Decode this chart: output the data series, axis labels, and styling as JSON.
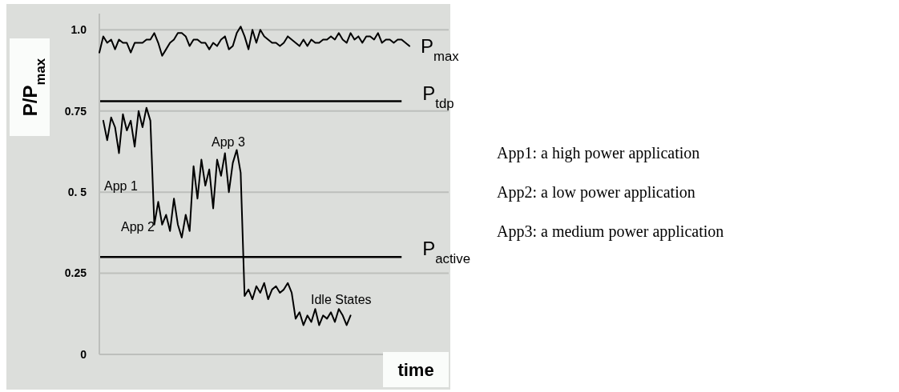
{
  "chart_data": {
    "type": "line",
    "xlabel": "time",
    "ylabel": "P/P$_{max}$",
    "categories": [
      null,
      null,
      null,
      null,
      null,
      null,
      null,
      null,
      null,
      null,
      null,
      null,
      null,
      null,
      null,
      null,
      null,
      null,
      null,
      null,
      null,
      null,
      null,
      null,
      null,
      null,
      null,
      null,
      null,
      null,
      null,
      null,
      null,
      null,
      null,
      null,
      null,
      null,
      null,
      null,
      null,
      null,
      null,
      null,
      null,
      null,
      null,
      null,
      null,
      null,
      null,
      null,
      null,
      null,
      null,
      null,
      null,
      null,
      null,
      null,
      null,
      null,
      null,
      null,
      null,
      null,
      null,
      null,
      null,
      null,
      null,
      null,
      null,
      null,
      null,
      null,
      null,
      null,
      null,
      null,
      null,
      null,
      null,
      null,
      null,
      null,
      null,
      null,
      null,
      null
    ],
    "series": [
      {
        "name": "P$_{max}$",
        "color": "#000000",
        "values": [
          0.93,
          0.98,
          0.96,
          0.97,
          0.94,
          0.97,
          0.96,
          0.96,
          0.93,
          0.96,
          0.96,
          0.96,
          0.97,
          0.97,
          0.99,
          0.96,
          0.92,
          0.94,
          0.96,
          0.97,
          0.99,
          0.99,
          0.98,
          0.95,
          0.97,
          0.97,
          0.96,
          0.96,
          0.94,
          0.96,
          0.95,
          0.97,
          0.98,
          0.94,
          0.95,
          0.99,
          1.01,
          0.98,
          0.94,
          1.0,
          0.96,
          1.0,
          0.98,
          0.97,
          0.96,
          0.96,
          0.95,
          0.96,
          0.98,
          0.97,
          0.96,
          0.95,
          0.97,
          0.95,
          0.97,
          0.96,
          0.96,
          0.97,
          0.97,
          0.98,
          0.97,
          0.99,
          0.97,
          0.96,
          0.99,
          0.97,
          0.98,
          0.96,
          0.98,
          0.98,
          0.97,
          0.99,
          0.96,
          0.97,
          0.97,
          0.96,
          0.97,
          0.97,
          0.96,
          0.95,
          null,
          null,
          null,
          null,
          null,
          null,
          null,
          null,
          null,
          null
        ]
      },
      {
        "color": "#000000",
        "values": [
          null,
          0.72,
          0.66,
          0.73,
          0.7,
          0.62,
          0.74,
          0.69,
          0.72,
          0.64,
          0.75,
          0.7,
          0.76,
          0.72,
          0.4,
          0.47,
          0.4,
          0.43,
          0.38,
          0.48,
          0.4,
          0.36,
          0.43,
          0.38,
          0.58,
          0.48,
          0.6,
          0.52,
          0.57,
          0.45,
          0.6,
          0.55,
          0.62,
          0.5,
          0.59,
          0.63,
          0.56,
          0.18,
          0.2,
          0.17,
          0.21,
          0.19,
          0.22,
          0.17,
          0.2,
          0.21,
          0.19,
          0.2,
          0.22,
          0.19,
          0.11,
          0.13,
          0.09,
          0.12,
          0.1,
          0.14,
          0.09,
          0.12,
          0.11,
          0.13,
          0.1,
          0.14,
          0.12,
          0.09,
          0.12,
          null,
          null,
          null,
          null,
          null,
          null,
          null,
          null,
          null,
          null,
          null,
          null,
          null,
          null,
          null,
          null,
          null,
          null,
          null,
          null,
          null,
          null,
          null,
          null,
          null
        ]
      }
    ],
    "ylim": [
      0,
      1.05
    ],
    "yticks": [
      0,
      {
        "value": 0.25,
        "label": "0.25"
      },
      {
        "value": 0.5,
        "label": "0. 5"
      },
      0.75,
      {
        "value": 1.0,
        "label": "1.0"
      }
    ],
    "grid": "y",
    "tick_labels": "y",
    "marker": "none",
    "line_style": "solid",
    "ref_lines": [
      {
        "axis": "y",
        "value": 0.78,
        "label": "P$_{tdp}$",
        "color": "#000000"
      },
      {
        "axis": "y",
        "value": 0.3,
        "label": "P$_{active}$",
        "color": "#000000"
      }
    ],
    "annotations": [
      "App 1",
      "App 2",
      "App 3",
      "Idle States",
      "App1: a high power application",
      "App2: a low power application",
      "App3: a medium power application"
    ]
  }
}
